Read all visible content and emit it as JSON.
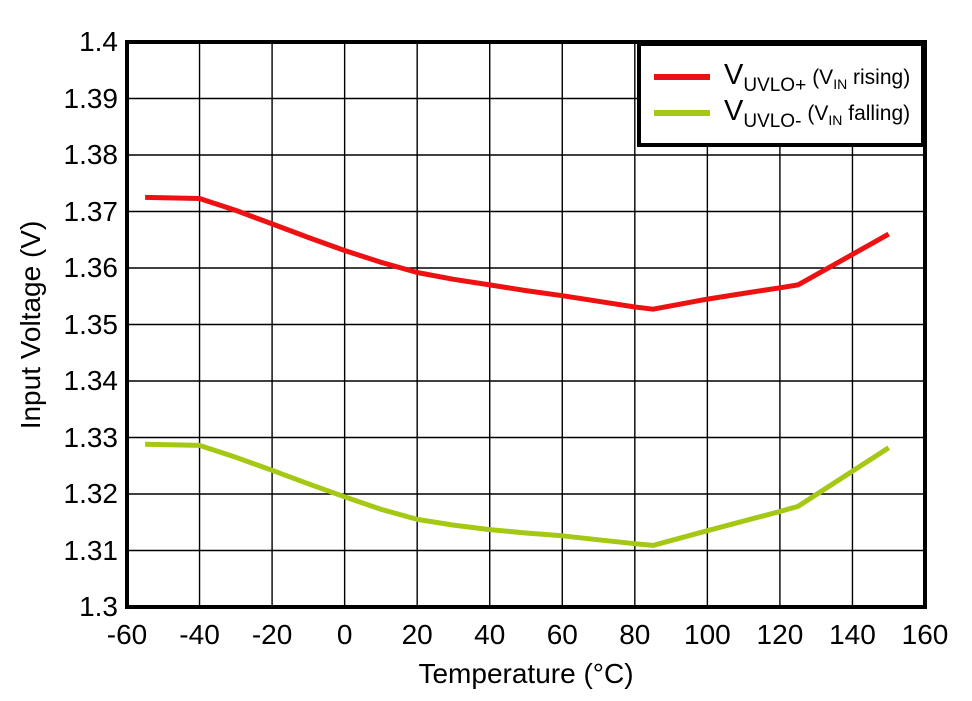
{
  "chart_data": {
    "type": "line",
    "xlabel": "Temperature (°C)",
    "ylabel": "Input Voltage (V)",
    "xlim": [
      -60,
      160
    ],
    "ylim": [
      1.3,
      1.4
    ],
    "x_tick_values": [
      -60,
      -40,
      -20,
      0,
      20,
      40,
      60,
      80,
      100,
      120,
      140,
      160
    ],
    "x_tick_labels": [
      "-60",
      "-40",
      "-20",
      "0",
      "20",
      "40",
      "60",
      "80",
      "100",
      "120",
      "140",
      "160"
    ],
    "y_tick_values": [
      1.3,
      1.31,
      1.32,
      1.33,
      1.34,
      1.35,
      1.36,
      1.37,
      1.38,
      1.39,
      1.4
    ],
    "y_tick_labels": [
      "1.3",
      "1.31",
      "1.32",
      "1.33",
      "1.34",
      "1.35",
      "1.36",
      "1.37",
      "1.38",
      "1.39",
      "1.4"
    ],
    "grid": true,
    "legend_position": "top-right",
    "axis_color": "#000000",
    "background_color": "#ffffff",
    "series": [
      {
        "name": "VUVLO+ (VIN rising)",
        "color": "#ee1111",
        "points": [
          [
            -55,
            1.3725
          ],
          [
            -40,
            1.3723
          ],
          [
            -30,
            1.3702
          ],
          [
            -20,
            1.3678
          ],
          [
            -10,
            1.3654
          ],
          [
            0,
            1.3631
          ],
          [
            10,
            1.361
          ],
          [
            20,
            1.3592
          ],
          [
            30,
            1.358
          ],
          [
            40,
            1.357
          ],
          [
            50,
            1.356
          ],
          [
            60,
            1.3551
          ],
          [
            70,
            1.3541
          ],
          [
            80,
            1.3531
          ],
          [
            85,
            1.3527
          ],
          [
            100,
            1.3545
          ],
          [
            110,
            1.3555
          ],
          [
            120,
            1.3565
          ],
          [
            125,
            1.357
          ],
          [
            150,
            1.366
          ]
        ]
      },
      {
        "name": "VUVLO- (VIN falling)",
        "color": "#a5c814",
        "points": [
          [
            -55,
            1.3288
          ],
          [
            -40,
            1.3286
          ],
          [
            -30,
            1.3265
          ],
          [
            -20,
            1.3242
          ],
          [
            -10,
            1.3218
          ],
          [
            0,
            1.3195
          ],
          [
            10,
            1.3173
          ],
          [
            20,
            1.3155
          ],
          [
            30,
            1.3145
          ],
          [
            40,
            1.3137
          ],
          [
            50,
            1.3131
          ],
          [
            60,
            1.3126
          ],
          [
            70,
            1.3119
          ],
          [
            80,
            1.3112
          ],
          [
            85,
            1.3109
          ],
          [
            100,
            1.3135
          ],
          [
            110,
            1.3152
          ],
          [
            120,
            1.3169
          ],
          [
            125,
            1.3178
          ],
          [
            150,
            1.3282
          ]
        ]
      }
    ]
  },
  "legend": {
    "items": [
      {
        "sym_main": "V",
        "sym_sub": "UVLO+",
        "cond_pre": "(V",
        "cond_sub": "IN",
        "cond_post": " rising)",
        "color": "#ee1111"
      },
      {
        "sym_main": "V",
        "sym_sub": "UVLO-",
        "cond_pre": "(V",
        "cond_sub": "IN",
        "cond_post": " falling)",
        "color": "#a5c814"
      }
    ]
  }
}
